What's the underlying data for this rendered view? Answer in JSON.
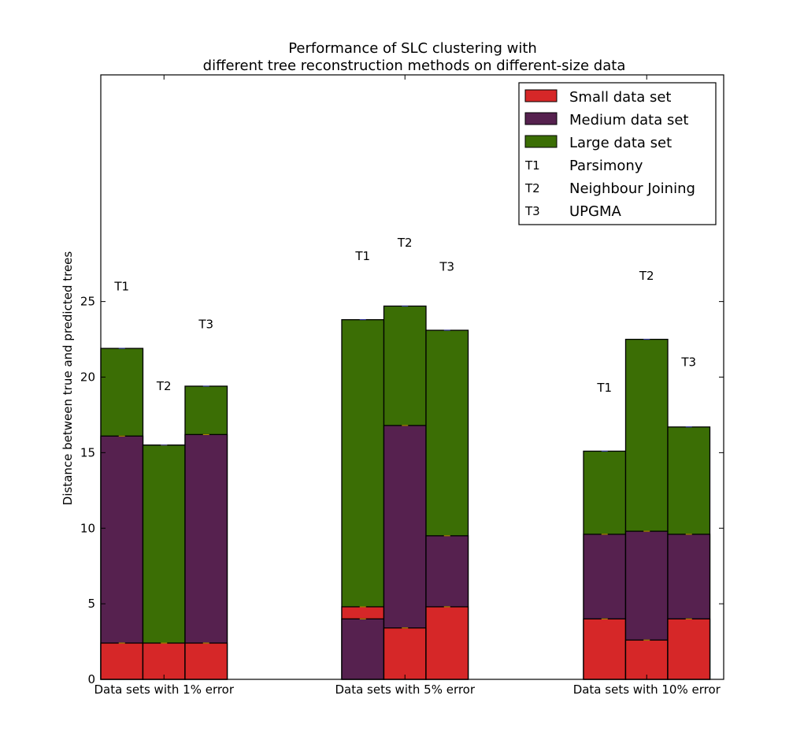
{
  "chart_data": {
    "type": "bar",
    "title": "Performance of SLC clustering with",
    "subtitle": "different tree reconstruction methods on different-size data",
    "xlabel": "",
    "ylabel": "Distance between true and predicted trees",
    "ylim": [
      0,
      40
    ],
    "yticks": [
      "0",
      "5",
      "10",
      "15",
      "20",
      "25"
    ],
    "categories": [
      "Data sets with 1% error",
      "Data sets with 5% error",
      "Data sets with 10% error"
    ],
    "methods": [
      "T1",
      "T2",
      "T3"
    ],
    "grid": false,
    "legend_position": "top-right",
    "colors": {
      "small": "#d62728",
      "medium": "#56214f",
      "large": "#3b6e05",
      "edge": "#000000"
    },
    "legend": [
      {
        "type": "swatch",
        "key": "small",
        "label": "Small data set"
      },
      {
        "type": "swatch",
        "key": "medium",
        "label": "Medium data set"
      },
      {
        "type": "swatch",
        "key": "large",
        "label": "Large data set"
      },
      {
        "type": "text",
        "code": "T1",
        "label": "Parsimony"
      },
      {
        "type": "text",
        "code": "T2",
        "label": "Neighbour Joining"
      },
      {
        "type": "text",
        "code": "T3",
        "label": "UPGMA"
      }
    ],
    "series": [
      {
        "name": "Small data set",
        "key": "small",
        "values": [
          [
            2.4,
            2.4,
            2.4
          ],
          [
            4.8,
            3.4,
            4.8
          ],
          [
            4.0,
            2.6,
            4.0
          ]
        ]
      },
      {
        "name": "Medium data set",
        "key": "medium",
        "values": [
          [
            16.1,
            15.5,
            16.2
          ],
          [
            4.0,
            16.8,
            9.5
          ],
          [
            9.6,
            9.8,
            9.6
          ]
        ]
      },
      {
        "name": "Large data set",
        "key": "large",
        "values": [
          [
            21.9,
            15.5,
            19.4
          ],
          [
            23.8,
            24.7,
            23.1
          ],
          [
            15.1,
            22.5,
            16.7
          ]
        ]
      }
    ],
    "bar_labels": [
      [
        {
          "text": "T1",
          "value": 26.0
        },
        {
          "text": "T2",
          "value": 19.4
        },
        {
          "text": "T3",
          "value": 23.5
        }
      ],
      [
        {
          "text": "T1",
          "value": 28.0
        },
        {
          "text": "T2",
          "value": 28.9
        },
        {
          "text": "T3",
          "value": 27.3
        }
      ],
      [
        {
          "text": "T1",
          "value": 19.3
        },
        {
          "text": "T2",
          "value": 26.7
        },
        {
          "text": "T3",
          "value": 21.0
        }
      ]
    ]
  }
}
